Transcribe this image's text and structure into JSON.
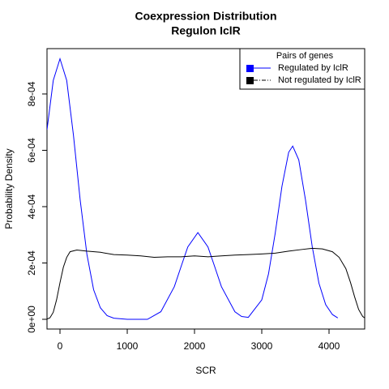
{
  "chart_data": {
    "type": "line",
    "title": "Coexpression Distribution",
    "subtitle": "Regulon IclR",
    "x_label": "SCR",
    "y_label": "Probability Density",
    "xlim": [
      -193,
      4530
    ],
    "ylim": [
      -3.45e-05,
      0.000961
    ],
    "xticks": [
      0,
      1000,
      2000,
      3000,
      4000
    ],
    "yticks": [
      {
        "value": 0,
        "label": "0e+00"
      },
      {
        "value": 0.0002,
        "label": "2e-04"
      },
      {
        "value": 0.0004,
        "label": "4e-04"
      },
      {
        "value": 0.0006,
        "label": "6e-04"
      },
      {
        "value": 0.0008,
        "label": "8e-04"
      }
    ],
    "legend_title": "Pairs of genes",
    "legend_position": "top-right",
    "series": [
      {
        "name": "Regulated by  IclR",
        "color": "#0000ff",
        "linestyle": "solid",
        "x": [
          -193,
          -100,
          0,
          100,
          200,
          300,
          400,
          500,
          600,
          700,
          800,
          1000,
          1300,
          1500,
          1700,
          1800,
          1900,
          2050,
          2200,
          2300,
          2400,
          2600,
          2700,
          2800,
          3000,
          3100,
          3200,
          3300,
          3400,
          3460,
          3550,
          3650,
          3750,
          3850,
          3950,
          4050,
          4130
        ],
        "values": [
          0.000673,
          0.000848,
          0.000925,
          0.000848,
          0.000654,
          0.000424,
          0.000231,
          0.000105,
          4.1e-05,
          1.3e-05,
          4e-06,
          0,
          0,
          2.7e-05,
          0.000116,
          0.000187,
          0.000257,
          0.000308,
          0.000257,
          0.000187,
          0.000116,
          2.7e-05,
          1e-05,
          7e-06,
          6.9e-05,
          0.000161,
          0.000306,
          0.000472,
          0.000593,
          0.000615,
          0.000566,
          0.000424,
          0.000258,
          0.000128,
          5.2e-05,
          1.7e-05,
          5e-06
        ]
      },
      {
        "name": "Not regulated by  IclR",
        "color": "#000000",
        "linestyle": "dashdot",
        "x": [
          -193,
          -150,
          -100,
          -50,
          0,
          50,
          100,
          150,
          250,
          400,
          600,
          800,
          1000,
          1200,
          1400,
          1600,
          1800,
          2000,
          2200,
          2400,
          2600,
          2800,
          3000,
          3200,
          3400,
          3600,
          3750,
          3900,
          4050,
          4150,
          4250,
          4320,
          4380,
          4440,
          4500,
          4530
        ],
        "values": [
          1e-06,
          5e-06,
          2.5e-05,
          7e-05,
          0.00013,
          0.000185,
          0.00022,
          0.00024,
          0.000246,
          0.000242,
          0.000238,
          0.00023,
          0.000228,
          0.000225,
          0.00022,
          0.000222,
          0.000222,
          0.000225,
          0.000222,
          0.000225,
          0.000228,
          0.00023,
          0.000232,
          0.000235,
          0.000242,
          0.000248,
          0.000252,
          0.00025,
          0.00024,
          0.00022,
          0.00018,
          0.00013,
          8e-05,
          3.5e-05,
          1e-05,
          5e-06
        ]
      }
    ]
  }
}
